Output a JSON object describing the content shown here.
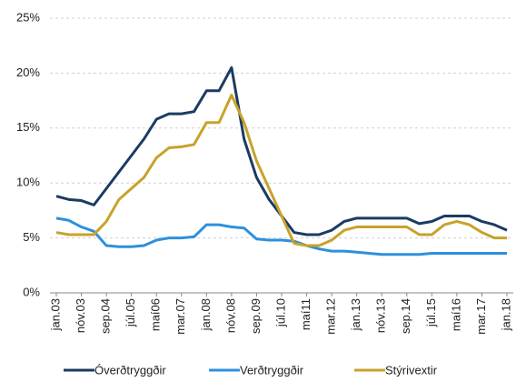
{
  "chart_data": {
    "type": "line",
    "categories": [
      "jan.03",
      null,
      "nóv.03",
      null,
      "sep.04",
      null,
      "júl.05",
      null,
      "maí06",
      null,
      "mar.07",
      null,
      "jan.08",
      null,
      "nóv.08",
      null,
      "sep.09",
      null,
      "júl.10",
      null,
      "maí11",
      null,
      "mar.12",
      null,
      "jan.13",
      null,
      "nóv.13",
      null,
      "sep.14",
      null,
      "júl.15",
      null,
      "maí16",
      null,
      "mar.17",
      null,
      "jan.18"
    ],
    "series": [
      {
        "name": "Óverðtryggðir",
        "color": "#1b3b63",
        "values": [
          8.8,
          8.5,
          8.4,
          8.0,
          9.5,
          11.0,
          12.5,
          14.0,
          15.8,
          16.3,
          16.3,
          16.5,
          18.4,
          18.4,
          20.5,
          14.0,
          10.5,
          8.5,
          7.0,
          5.5,
          5.3,
          5.3,
          5.7,
          6.5,
          6.8,
          6.8,
          6.8,
          6.8,
          6.8,
          6.3,
          6.5,
          7.0,
          7.0,
          7.0,
          6.5,
          6.2,
          5.7
        ]
      },
      {
        "name": "Verðtryggðir",
        "color": "#2e90dc",
        "values": [
          6.8,
          6.6,
          6.0,
          5.6,
          4.3,
          4.2,
          4.2,
          4.3,
          4.8,
          5.0,
          5.0,
          5.1,
          6.2,
          6.2,
          6.0,
          5.9,
          4.9,
          4.8,
          4.8,
          4.7,
          4.3,
          4.0,
          3.8,
          3.8,
          3.7,
          3.6,
          3.5,
          3.5,
          3.5,
          3.5,
          3.6,
          3.6,
          3.6,
          3.6,
          3.6,
          3.6,
          3.6
        ]
      },
      {
        "name": "Stýrivextir",
        "color": "#c8a22a",
        "values": [
          5.5,
          5.3,
          5.3,
          5.3,
          6.5,
          8.5,
          9.5,
          10.5,
          12.3,
          13.2,
          13.3,
          13.5,
          15.5,
          15.5,
          18.0,
          15.5,
          12.0,
          9.5,
          7.0,
          4.5,
          4.3,
          4.3,
          4.8,
          5.7,
          6.0,
          6.0,
          6.0,
          6.0,
          6.0,
          5.3,
          5.3,
          6.2,
          6.5,
          6.2,
          5.5,
          5.0,
          5.0
        ]
      }
    ],
    "ylim": [
      0,
      25
    ],
    "yticks": [
      {
        "value": 0,
        "label": "0%"
      },
      {
        "value": 5,
        "label": "5%"
      },
      {
        "value": 10,
        "label": "10%"
      },
      {
        "value": 15,
        "label": "15%"
      },
      {
        "value": 20,
        "label": "20%"
      },
      {
        "value": 25,
        "label": "25%"
      }
    ],
    "grid": true
  }
}
